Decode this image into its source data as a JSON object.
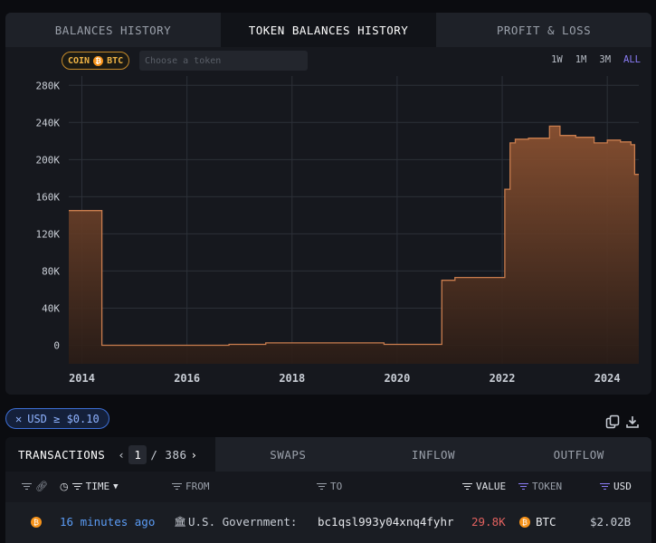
{
  "top_tabs": [
    "BALANCES HISTORY",
    "TOKEN BALANCES HISTORY",
    "PROFIT & LOSS"
  ],
  "coin_pill": {
    "prefix": "COIN",
    "symbol": "BTC",
    "icon": "bitcoin-icon",
    "color": "#f7931a"
  },
  "token_search": {
    "placeholder": "Choose a token",
    "value": ""
  },
  "ranges": [
    "1W",
    "1M",
    "3M",
    "ALL"
  ],
  "active_range": "ALL",
  "chart_data": {
    "type": "area",
    "ylim": [
      -20000,
      290000
    ],
    "y_ticks": [
      0,
      40000,
      80000,
      120000,
      160000,
      200000,
      240000,
      280000
    ],
    "y_tick_labels": [
      "0",
      "40K",
      "80K",
      "120K",
      "160K",
      "200K",
      "240K",
      "280K"
    ],
    "xlim": [
      2013.75,
      2024.6
    ],
    "x_ticks": [
      2014,
      2016,
      2018,
      2020,
      2022,
      2024
    ],
    "x_tick_labels": [
      "2014",
      "2016",
      "2018",
      "2020",
      "2022",
      "2024"
    ],
    "series": [
      {
        "step": true,
        "x": [
          2013.75,
          2014.38,
          2016.8,
          2017.5,
          2019.75,
          2020.85,
          2021.1,
          2022.05,
          2022.15,
          2022.25,
          2022.5,
          2022.9,
          2023.1,
          2023.4,
          2023.75,
          2024.0,
          2024.25,
          2024.45,
          2024.52
        ],
        "y": [
          145000,
          0,
          1000,
          2500,
          1000,
          70000,
          73000,
          168000,
          218000,
          222000,
          223000,
          236000,
          226000,
          224000,
          218000,
          221000,
          219000,
          216000,
          184000
        ]
      }
    ],
    "grid": true,
    "fill_color": "#8a5131",
    "line_color": "#c97d4e"
  },
  "filter_chip": {
    "label": "USD ≥ $0.10"
  },
  "transactions": {
    "title": "TRANSACTIONS",
    "page": "1",
    "pages": "/ 386",
    "tabs": [
      "SWAPS",
      "INFLOW",
      "OUTFLOW"
    ],
    "columns": {
      "time": "TIME",
      "from": "FROM",
      "to": "TO",
      "value": "VALUE",
      "token": "TOKEN",
      "usd": "USD"
    },
    "rows": [
      {
        "time": "16 minutes ago",
        "from": "U.S. Government:",
        "to": "bc1qsl993y04xnq4fyhr",
        "value": "29.8K",
        "token": "BTC",
        "usd": "$2.02B"
      }
    ]
  }
}
